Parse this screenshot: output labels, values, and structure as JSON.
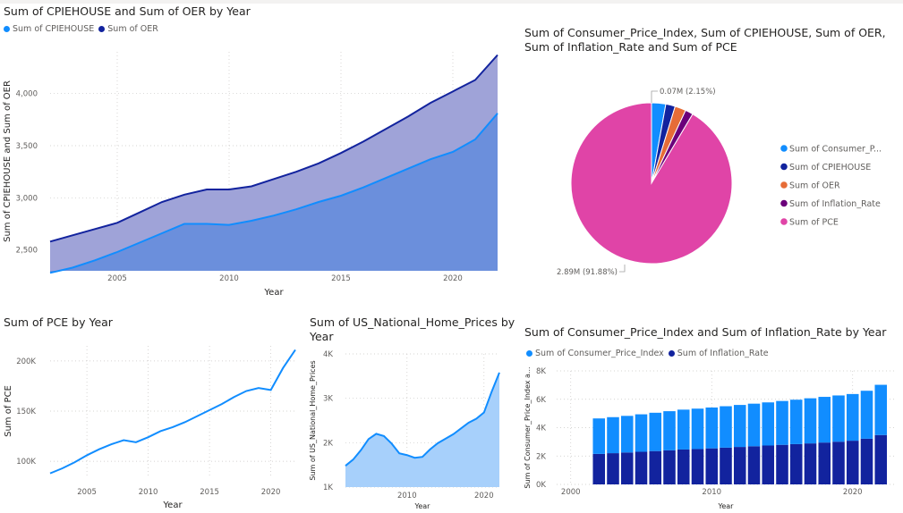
{
  "chart_data": [
    {
      "id": "c1",
      "type": "area",
      "title": "Sum of CPIEHOUSE and Sum of OER by Year",
      "xlabel": "Year",
      "ylabel": "Sum of CPIEHOUSE and Sum of OER",
      "x": [
        2002,
        2003,
        2004,
        2005,
        2006,
        2007,
        2008,
        2009,
        2010,
        2011,
        2012,
        2013,
        2014,
        2015,
        2016,
        2017,
        2018,
        2019,
        2020,
        2021,
        2022
      ],
      "xlim": [
        2002,
        2022
      ],
      "ylim": [
        2300,
        4400
      ],
      "xticks": [
        "2005",
        "2010",
        "2015",
        "2020"
      ],
      "yticks": [
        "2,500",
        "3,000",
        "3,500",
        "4,000"
      ],
      "series": [
        {
          "name": "Sum of CPIEHOUSE",
          "color": "#118dff",
          "values": [
            2280,
            2330,
            2400,
            2480,
            2570,
            2660,
            2750,
            2750,
            2740,
            2780,
            2830,
            2890,
            2960,
            3020,
            3100,
            3190,
            3280,
            3370,
            3440,
            3560,
            3810
          ]
        },
        {
          "name": "Sum of OER",
          "color": "#12239e",
          "values": [
            2580,
            2640,
            2700,
            2760,
            2860,
            2960,
            3030,
            3080,
            3080,
            3110,
            3180,
            3250,
            3330,
            3430,
            3540,
            3660,
            3780,
            3910,
            4020,
            4130,
            4370
          ]
        }
      ],
      "fill_colors": [
        "#6b8fdc",
        "#9fa3d8"
      ],
      "grid": true,
      "legend": "top-left"
    },
    {
      "id": "c2",
      "type": "pie",
      "title": "Sum of Consumer_Price_Index, Sum of CPIEHOUSE, Sum of OER,",
      "title_line2": "Sum of Inflation_Rate and Sum of PCE",
      "series": [
        {
          "name": "Sum of Consumer_P...",
          "color": "#118dff",
          "value": 0.09
        },
        {
          "name": "Sum of CPIEHOUSE",
          "color": "#12239e",
          "value": 0.06
        },
        {
          "name": "Sum of OER",
          "color": "#e66c37",
          "value": 0.07
        },
        {
          "name": "Sum of Inflation_Rate",
          "color": "#6b007b",
          "value": 0.05
        },
        {
          "name": "Sum of PCE",
          "color": "#e044a7",
          "value": 2.89
        }
      ],
      "labels": {
        "top": "0.07M (2.15%)",
        "bottom": "2.89M (91.88%)"
      },
      "legend": "right"
    },
    {
      "id": "c3",
      "type": "line",
      "title": "Sum of PCE by Year",
      "xlabel": "Year",
      "ylabel": "Sum of PCE",
      "x": [
        2002,
        2003,
        2004,
        2005,
        2006,
        2007,
        2008,
        2009,
        2010,
        2011,
        2012,
        2013,
        2014,
        2015,
        2016,
        2017,
        2018,
        2019,
        2020,
        2021,
        2022
      ],
      "xlim": [
        2002,
        2022
      ],
      "ylim": [
        85000,
        215000
      ],
      "xticks": [
        "2005",
        "2010",
        "2015",
        "2020"
      ],
      "yticks": [
        "100K",
        "150K",
        "200K"
      ],
      "series": [
        {
          "name": "Sum of PCE",
          "color": "#118dff",
          "values": [
            88000,
            93000,
            99000,
            106000,
            112000,
            117000,
            121000,
            119000,
            124000,
            130000,
            134000,
            139000,
            145000,
            151000,
            157000,
            164000,
            170000,
            173000,
            171000,
            193000,
            211000
          ]
        }
      ],
      "grid": true
    },
    {
      "id": "c4",
      "type": "area",
      "title": "Sum of US_National_Home_Prices by",
      "title_line2": "Year",
      "xlabel": "Year",
      "ylabel": "Sum of US_National_Home_Prices",
      "x": [
        2002,
        2003,
        2004,
        2005,
        2006,
        2007,
        2008,
        2009,
        2010,
        2011,
        2012,
        2013,
        2014,
        2015,
        2016,
        2017,
        2018,
        2019,
        2020,
        2021,
        2022
      ],
      "xlim": [
        2002,
        2022
      ],
      "ylim": [
        1000,
        4000
      ],
      "xticks": [
        "2010",
        "2020"
      ],
      "yticks": [
        "1K",
        "2K",
        "3K",
        "4K"
      ],
      "series": [
        {
          "name": "Sum of US_National_Home_Prices",
          "color": "#118dff",
          "values": [
            1480,
            1620,
            1830,
            2080,
            2200,
            2150,
            1980,
            1760,
            1720,
            1660,
            1680,
            1850,
            1990,
            2090,
            2190,
            2320,
            2450,
            2540,
            2680,
            3150,
            3580
          ]
        }
      ],
      "fill_colors": [
        "#a7d0fb"
      ],
      "grid": true
    },
    {
      "id": "c5",
      "type": "bar",
      "stacked": true,
      "title": "Sum of Consumer_Price_Index and Sum of Inflation_Rate by Year",
      "xlabel": "Year",
      "ylabel": "Sum of Consumer_Price_Index a...",
      "x": [
        2002,
        2003,
        2004,
        2005,
        2006,
        2007,
        2008,
        2009,
        2010,
        2011,
        2012,
        2013,
        2014,
        2015,
        2016,
        2017,
        2018,
        2019,
        2020,
        2021,
        2022
      ],
      "xlim": [
        1999,
        2023
      ],
      "ylim": [
        0,
        8000
      ],
      "xticks": [
        "2000",
        "2010",
        "2020"
      ],
      "yticks": [
        "0K",
        "2K",
        "4K",
        "6K",
        "8K"
      ],
      "series": [
        {
          "name": "Sum of Inflation_Rate",
          "color": "#12239e",
          "values": [
            2150,
            2200,
            2250,
            2300,
            2350,
            2400,
            2460,
            2490,
            2540,
            2590,
            2640,
            2690,
            2740,
            2790,
            2840,
            2890,
            2950,
            3010,
            3080,
            3220,
            3480
          ]
        },
        {
          "name": "Sum of Consumer_Price_Index",
          "color": "#118dff",
          "values": [
            2500,
            2540,
            2580,
            2640,
            2700,
            2760,
            2810,
            2850,
            2880,
            2920,
            2960,
            3000,
            3040,
            3090,
            3130,
            3180,
            3220,
            3260,
            3290,
            3380,
            3540
          ]
        }
      ],
      "legend_order": [
        "Sum of Consumer_Price_Index",
        "Sum of Inflation_Rate"
      ],
      "grid": true,
      "legend": "top-left"
    }
  ]
}
